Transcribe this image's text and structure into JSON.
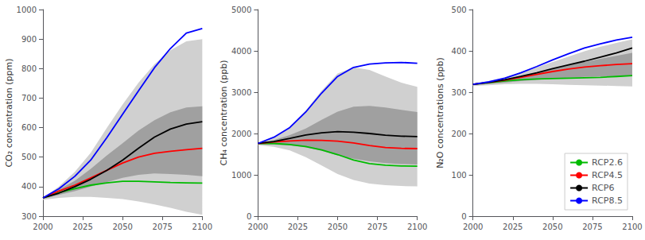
{
  "chart_data": [
    {
      "type": "line",
      "ylabel": "CO₂ concentration (ppm)",
      "x": [
        2000,
        2010,
        2020,
        2030,
        2040,
        2050,
        2060,
        2070,
        2080,
        2090,
        2100
      ],
      "xlim": [
        2000,
        2100
      ],
      "xticks": [
        2000,
        2025,
        2050,
        2075,
        2100
      ],
      "ylim": [
        300,
        1000
      ],
      "yticks": [
        300,
        400,
        500,
        600,
        700,
        800,
        900,
        1000
      ],
      "grid": false,
      "series": [
        {
          "type": "band",
          "color": "#d0d0d0",
          "low": [
            355,
            362,
            365,
            365,
            362,
            358,
            350,
            340,
            328,
            315,
            305
          ],
          "high": [
            362,
            400,
            450,
            515,
            598,
            678,
            752,
            815,
            862,
            892,
            900
          ]
        },
        {
          "type": "band",
          "color": "#a0a0a0",
          "low": [
            358,
            372,
            385,
            400,
            415,
            430,
            440,
            445,
            443,
            440,
            435
          ],
          "high": [
            362,
            390,
            420,
            460,
            505,
            547,
            590,
            625,
            652,
            668,
            672
          ]
        },
        {
          "type": "line",
          "name": "RCP2.6",
          "color": "#00bb00",
          "values": [
            362,
            380,
            393,
            405,
            413,
            418,
            418,
            416,
            414,
            413,
            412
          ]
        },
        {
          "type": "line",
          "name": "RCP4.5",
          "color": "#ff0000",
          "values": [
            362,
            385,
            405,
            430,
            455,
            480,
            500,
            513,
            520,
            525,
            530
          ]
        },
        {
          "type": "line",
          "name": "RCP6",
          "color": "#000000",
          "values": [
            362,
            378,
            400,
            425,
            455,
            490,
            530,
            568,
            595,
            612,
            620
          ]
        },
        {
          "type": "line",
          "name": "RCP8.5",
          "color": "#0000ff",
          "values": [
            362,
            393,
            435,
            490,
            565,
            645,
            725,
            803,
            868,
            920,
            936
          ]
        }
      ]
    },
    {
      "type": "line",
      "ylabel": "CH₄ concentration (ppb)",
      "x": [
        2000,
        2010,
        2020,
        2030,
        2040,
        2050,
        2060,
        2070,
        2080,
        2090,
        2100
      ],
      "xlim": [
        2000,
        2100
      ],
      "xticks": [
        2000,
        2025,
        2050,
        2075,
        2100
      ],
      "ylim": [
        0,
        5000
      ],
      "yticks": [
        0,
        1000,
        2000,
        3000,
        4000,
        5000
      ],
      "grid": false,
      "series": [
        {
          "type": "band",
          "color": "#d0d0d0",
          "low": [
            1720,
            1680,
            1590,
            1430,
            1225,
            1020,
            875,
            790,
            750,
            730,
            720
          ],
          "high": [
            1760,
            1910,
            2150,
            2560,
            3040,
            3450,
            3600,
            3540,
            3380,
            3230,
            3130
          ]
        },
        {
          "type": "band",
          "color": "#a0a0a0",
          "low": [
            1735,
            1730,
            1710,
            1665,
            1580,
            1470,
            1390,
            1325,
            1285,
            1260,
            1250
          ],
          "high": [
            1760,
            1840,
            1960,
            2120,
            2330,
            2530,
            2650,
            2670,
            2630,
            2570,
            2520
          ]
        },
        {
          "type": "line",
          "name": "RCP2.6",
          "color": "#00bb00",
          "values": [
            1760,
            1760,
            1735,
            1685,
            1605,
            1490,
            1360,
            1270,
            1235,
            1215,
            1210
          ]
        },
        {
          "type": "line",
          "name": "RCP4.5",
          "color": "#ff0000",
          "values": [
            1760,
            1795,
            1820,
            1840,
            1835,
            1815,
            1770,
            1710,
            1660,
            1640,
            1635
          ]
        },
        {
          "type": "line",
          "name": "RCP6",
          "color": "#000000",
          "values": [
            1760,
            1805,
            1880,
            1965,
            2015,
            2045,
            2030,
            2000,
            1960,
            1935,
            1925
          ]
        },
        {
          "type": "line",
          "name": "RCP8.5",
          "color": "#0000ff",
          "values": [
            1760,
            1910,
            2145,
            2520,
            2980,
            3380,
            3600,
            3680,
            3710,
            3720,
            3700
          ]
        }
      ]
    },
    {
      "type": "line",
      "ylabel": "N₂O concentrations (ppb)",
      "x": [
        2000,
        2010,
        2020,
        2030,
        2040,
        2050,
        2060,
        2070,
        2080,
        2090,
        2100
      ],
      "xlim": [
        2000,
        2100
      ],
      "xticks": [
        2000,
        2025,
        2050,
        2075,
        2100
      ],
      "ylim": [
        0,
        500
      ],
      "yticks": [
        0,
        100,
        200,
        300,
        400,
        500
      ],
      "grid": false,
      "legend": "lower right",
      "series": [
        {
          "type": "band",
          "color": "#d0d0d0",
          "low": [
            315,
            317,
            319,
            320,
            320,
            319,
            318,
            317,
            316,
            315,
            314
          ],
          "high": [
            319,
            326,
            336,
            347,
            360,
            373,
            386,
            399,
            410,
            419,
            428
          ]
        },
        {
          "type": "band",
          "color": "#a0a0a0",
          "low": [
            317,
            320,
            323,
            327,
            330,
            333,
            335,
            337,
            338,
            339,
            340
          ],
          "high": [
            319,
            324,
            331,
            339,
            347,
            356,
            365,
            373,
            381,
            388,
            395
          ]
        },
        {
          "type": "line",
          "name": "RCP2.6",
          "color": "#00bb00",
          "values": [
            319,
            323,
            327,
            330,
            332,
            333,
            334,
            335,
            336,
            338,
            340
          ]
        },
        {
          "type": "line",
          "name": "RCP4.5",
          "color": "#ff0000",
          "values": [
            319,
            324,
            329,
            336,
            343,
            350,
            356,
            361,
            364,
            367,
            369
          ]
        },
        {
          "type": "line",
          "name": "RCP6",
          "color": "#000000",
          "values": [
            319,
            324,
            330,
            338,
            347,
            357,
            366,
            375,
            385,
            395,
            407
          ]
        },
        {
          "type": "line",
          "name": "RCP8.5",
          "color": "#0000ff",
          "values": [
            319,
            325,
            334,
            347,
            362,
            378,
            393,
            407,
            417,
            426,
            433
          ]
        }
      ]
    }
  ]
}
